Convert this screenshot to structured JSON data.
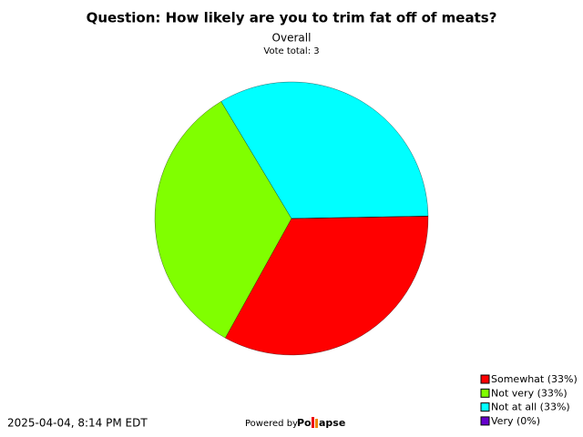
{
  "chart_data": {
    "type": "pie",
    "title": "Question: How likely are you to trim fat off of meats?",
    "subtitle": "Overall",
    "note": "Vote total: 3",
    "categories": [
      "Somewhat (33%)",
      "Not very (33%)",
      "Not at all (33%)",
      "Very (0%)"
    ],
    "values": [
      33,
      33,
      33,
      0
    ],
    "colors": [
      "#ff0000",
      "#80ff00",
      "#00ffff",
      "#6600cc"
    ]
  },
  "footer": {
    "timestamp": "2025-04-04, 8:14 PM EDT",
    "powered_by": "Powered by",
    "brand_start": "Po",
    "brand_end": "apse"
  }
}
